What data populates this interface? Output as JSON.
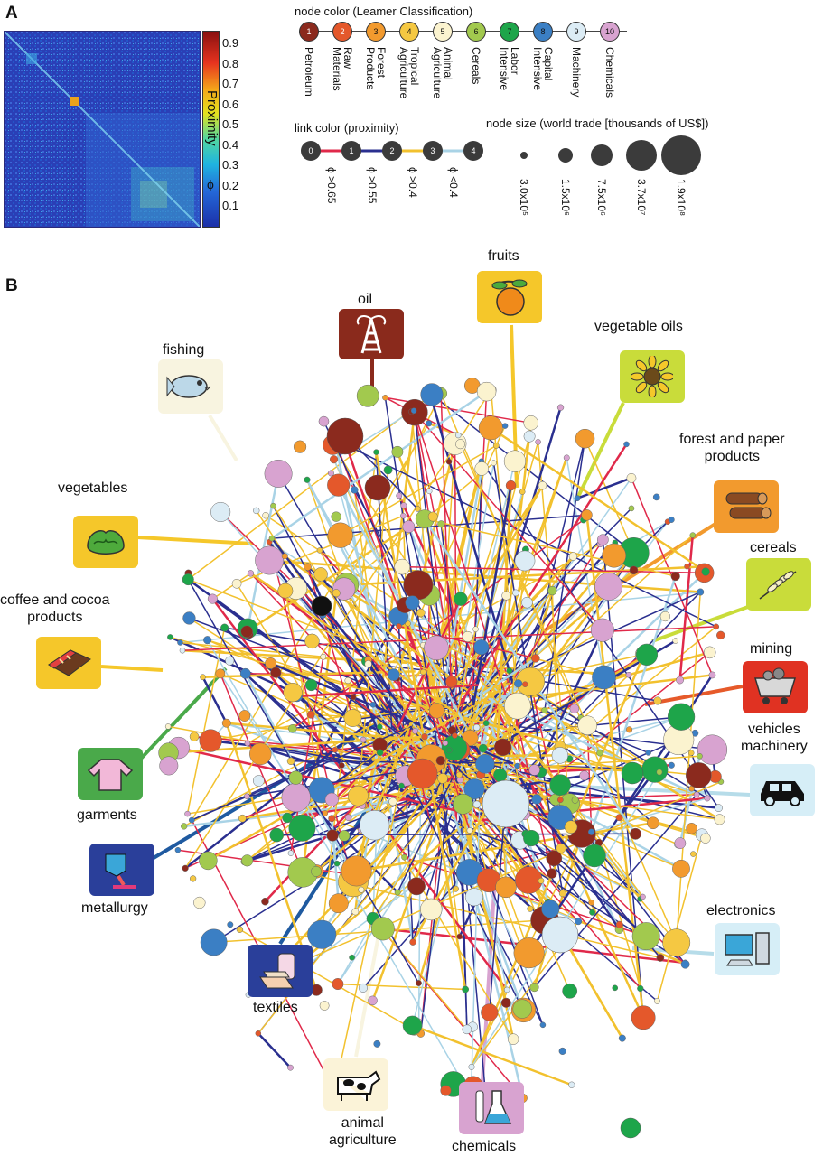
{
  "panel_a": {
    "letter": "A",
    "colorbar_label": "Proximity",
    "colorbar_symbol": "ϕ",
    "colorbar_ticks": [
      "0.9",
      "0.8",
      "0.7",
      "0.6",
      "0.5",
      "0.4",
      "0.3",
      "0.2",
      "0.1"
    ]
  },
  "node_color_legend": {
    "title": "node color (Leamer Classification)",
    "items": [
      {
        "num": "1",
        "label": "Petroleum",
        "color": "#8b2a1e"
      },
      {
        "num": "2",
        "label": "Raw\nMaterials",
        "color": "#e4582b"
      },
      {
        "num": "3",
        "label": "Forest\nProducts",
        "color": "#f29a2e"
      },
      {
        "num": "4",
        "label": "Tropical\nAgriculture",
        "color": "#f5c842"
      },
      {
        "num": "5",
        "label": "Animal\nAgriculture",
        "color": "#fbf3cf"
      },
      {
        "num": "6",
        "label": "Cereals",
        "color": "#a2c94e"
      },
      {
        "num": "7",
        "label": "Labor\nIntensive",
        "color": "#1ea54a"
      },
      {
        "num": "8",
        "label": "Capital\nIntensive",
        "color": "#3b7fc4"
      },
      {
        "num": "9",
        "label": "Machinery",
        "color": "#dcecf5"
      },
      {
        "num": "10",
        "label": "Chemicals",
        "color": "#d8a3d0"
      }
    ]
  },
  "link_color_legend": {
    "title": "link color (proximity)",
    "nodes": [
      "0",
      "1",
      "2",
      "3",
      "4"
    ],
    "links": [
      {
        "label": "ϕ >0.65",
        "color": "#e0294a"
      },
      {
        "label": "ϕ >0.55",
        "color": "#2a2f8f"
      },
      {
        "label": "ϕ >0.4",
        "color": "#f2c12e"
      },
      {
        "label": "ϕ <0.4",
        "color": "#a9d3e6"
      }
    ]
  },
  "node_size_legend": {
    "title": "node size (world trade [thousands of US$])",
    "items": [
      "3.0x10⁵",
      "1.5x10⁶",
      "7.5x10⁶",
      "3.7x10⁷",
      "1.9x10⁸"
    ]
  },
  "panel_b": {
    "letter": "B",
    "categories": [
      {
        "name": "oil"
      },
      {
        "name": "fruits"
      },
      {
        "name": "fishing"
      },
      {
        "name": "vegetable oils"
      },
      {
        "name": "vegetables"
      },
      {
        "name": "forest and paper\nproducts"
      },
      {
        "name": "cereals"
      },
      {
        "name": "coffee and cocoa\nproducts"
      },
      {
        "name": "mining"
      },
      {
        "name": "vehicles\nmachinery"
      },
      {
        "name": "garments"
      },
      {
        "name": "metallurgy"
      },
      {
        "name": "electronics"
      },
      {
        "name": "textiles"
      },
      {
        "name": "animal\nagriculture"
      },
      {
        "name": "chemicals"
      }
    ]
  }
}
